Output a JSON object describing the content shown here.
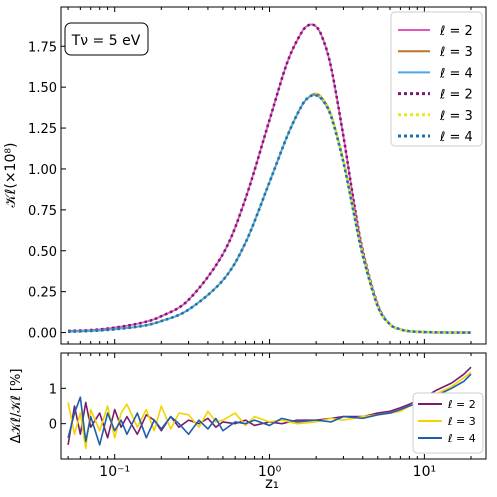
{
  "colors": {
    "l2_solid": "#e356c0",
    "l3_solid": "#b8762a",
    "l4_solid": "#4aa8e8",
    "l2_dot": "#7a1c6e",
    "l3_dot": "#e6e81a",
    "l4_dot": "#1f6fae",
    "res_l2": "#7a1c6e",
    "res_l3": "#f2d400",
    "res_l4": "#1f5fa8"
  },
  "chart_data": [
    {
      "type": "line",
      "xscale": "log",
      "xlim": [
        0.045,
        25
      ],
      "ylim": [
        -0.07,
        1.99
      ],
      "ylabel": "𝒦ℓ(×10⁸)",
      "yticks": [
        "0.00",
        "0.25",
        "0.50",
        "0.75",
        "1.00",
        "1.25",
        "1.50",
        "1.75"
      ],
      "yticks_values": [
        0,
        0.25,
        0.5,
        0.75,
        1.0,
        1.25,
        1.5,
        1.75
      ],
      "annotation": "Tν = 5 eV",
      "annotation_position": "top-left",
      "legend_position": "top-right",
      "x": [
        0.05,
        0.07,
        0.1,
        0.15,
        0.2,
        0.3,
        0.5,
        0.7,
        1.0,
        1.3,
        1.6,
        1.8,
        2.0,
        2.2,
        2.5,
        3.0,
        3.5,
        4.0,
        5.0,
        6.0,
        7.0,
        8.0,
        10.0,
        12.0,
        15.0,
        20.0
      ],
      "series": [
        {
          "name": "ℓ = 2",
          "style": "solid",
          "values": [
            0.01,
            0.015,
            0.03,
            0.06,
            0.1,
            0.2,
            0.48,
            0.82,
            1.3,
            1.65,
            1.83,
            1.88,
            1.87,
            1.8,
            1.62,
            1.2,
            0.8,
            0.5,
            0.17,
            0.05,
            0.02,
            0.008,
            0.003,
            0.001,
            0.0,
            0.0
          ]
        },
        {
          "name": "ℓ = 3",
          "style": "solid",
          "values": [
            0.005,
            0.01,
            0.02,
            0.04,
            0.07,
            0.14,
            0.32,
            0.55,
            0.92,
            1.2,
            1.38,
            1.44,
            1.46,
            1.43,
            1.33,
            1.05,
            0.74,
            0.48,
            0.16,
            0.05,
            0.02,
            0.008,
            0.003,
            0.001,
            0.0,
            0.0
          ]
        },
        {
          "name": "ℓ = 4",
          "style": "solid",
          "values": [
            0.005,
            0.01,
            0.02,
            0.04,
            0.07,
            0.14,
            0.32,
            0.55,
            0.92,
            1.2,
            1.38,
            1.44,
            1.45,
            1.42,
            1.32,
            1.04,
            0.73,
            0.47,
            0.16,
            0.05,
            0.02,
            0.008,
            0.003,
            0.001,
            0.0,
            0.0
          ]
        },
        {
          "name": "ℓ = 2",
          "style": "dotted",
          "values": [
            0.01,
            0.015,
            0.03,
            0.06,
            0.1,
            0.2,
            0.48,
            0.82,
            1.3,
            1.65,
            1.83,
            1.88,
            1.87,
            1.8,
            1.62,
            1.2,
            0.8,
            0.5,
            0.17,
            0.05,
            0.02,
            0.008,
            0.003,
            0.001,
            0.0,
            0.0
          ]
        },
        {
          "name": "ℓ = 3",
          "style": "dotted",
          "values": [
            0.005,
            0.01,
            0.02,
            0.04,
            0.07,
            0.14,
            0.32,
            0.55,
            0.92,
            1.2,
            1.38,
            1.44,
            1.46,
            1.43,
            1.33,
            1.05,
            0.74,
            0.48,
            0.16,
            0.05,
            0.02,
            0.008,
            0.003,
            0.001,
            0.0,
            0.0
          ]
        },
        {
          "name": "ℓ = 4",
          "style": "dotted",
          "values": [
            0.005,
            0.01,
            0.02,
            0.04,
            0.07,
            0.14,
            0.32,
            0.55,
            0.92,
            1.2,
            1.38,
            1.44,
            1.45,
            1.42,
            1.32,
            1.04,
            0.73,
            0.47,
            0.16,
            0.05,
            0.02,
            0.008,
            0.003,
            0.001,
            0.0,
            0.0
          ]
        }
      ]
    },
    {
      "type": "line",
      "xscale": "log",
      "xlim": [
        0.045,
        25
      ],
      "ylim": [
        -1.0,
        2.0
      ],
      "xlabel": "z₁",
      "ylabel": "Δ𝒦ℓ/𝒦ℓ [%]",
      "yticks": [
        "0",
        "1"
      ],
      "yticks_values": [
        0,
        1
      ],
      "xticks": [
        "10⁻¹",
        "10⁰",
        "10¹"
      ],
      "xticks_values": [
        0.1,
        1,
        10
      ],
      "legend_position": "bottom-right",
      "x": [
        0.05,
        0.055,
        0.06,
        0.065,
        0.07,
        0.08,
        0.09,
        0.1,
        0.11,
        0.12,
        0.14,
        0.16,
        0.18,
        0.2,
        0.23,
        0.26,
        0.3,
        0.35,
        0.4,
        0.45,
        0.5,
        0.6,
        0.7,
        0.8,
        1.0,
        1.2,
        1.5,
        2.0,
        2.5,
        3.0,
        4.0,
        5.0,
        6.0,
        7.0,
        8.0,
        10.0,
        12.0,
        15.0,
        18.0,
        20.0
      ],
      "series": [
        {
          "name": "ℓ = 2",
          "values": [
            -0.6,
            0.5,
            -0.3,
            0.6,
            -0.1,
            0.3,
            -0.4,
            0.4,
            -0.1,
            0.2,
            -0.3,
            0.25,
            0.1,
            -0.2,
            0.2,
            -0.1,
            0.1,
            0.0,
            0.15,
            -0.1,
            0.05,
            0.0,
            0.1,
            -0.05,
            0.05,
            0.0,
            0.1,
            0.1,
            0.15,
            0.2,
            0.2,
            0.3,
            0.35,
            0.45,
            0.55,
            0.75,
            0.95,
            1.15,
            1.4,
            1.6
          ]
        },
        {
          "name": "ℓ = 3",
          "values": [
            0.6,
            -0.3,
            0.3,
            -0.7,
            0.4,
            -0.2,
            0.5,
            -0.4,
            0.3,
            0.55,
            -0.1,
            0.4,
            -0.2,
            0.5,
            -0.15,
            0.3,
            0.25,
            -0.1,
            0.35,
            0.05,
            0.1,
            0.3,
            -0.05,
            0.2,
            0.05,
            0.1,
            0.0,
            0.05,
            0.15,
            0.1,
            0.2,
            0.25,
            0.3,
            0.35,
            0.5,
            0.7,
            0.85,
            1.05,
            1.3,
            1.45
          ]
        },
        {
          "name": "ℓ = 4",
          "values": [
            -0.4,
            0.3,
            0.75,
            -0.5,
            0.2,
            -0.6,
            0.3,
            -0.2,
            0.1,
            -0.3,
            0.3,
            -0.4,
            0.1,
            -0.15,
            0.2,
            0.0,
            -0.3,
            0.1,
            -0.15,
            0.15,
            -0.2,
            0.05,
            0.0,
            0.1,
            -0.05,
            0.15,
            0.05,
            0.1,
            0.05,
            0.2,
            0.15,
            0.25,
            0.3,
            0.4,
            0.5,
            0.65,
            0.8,
            1.0,
            1.2,
            1.4
          ]
        }
      ]
    }
  ]
}
